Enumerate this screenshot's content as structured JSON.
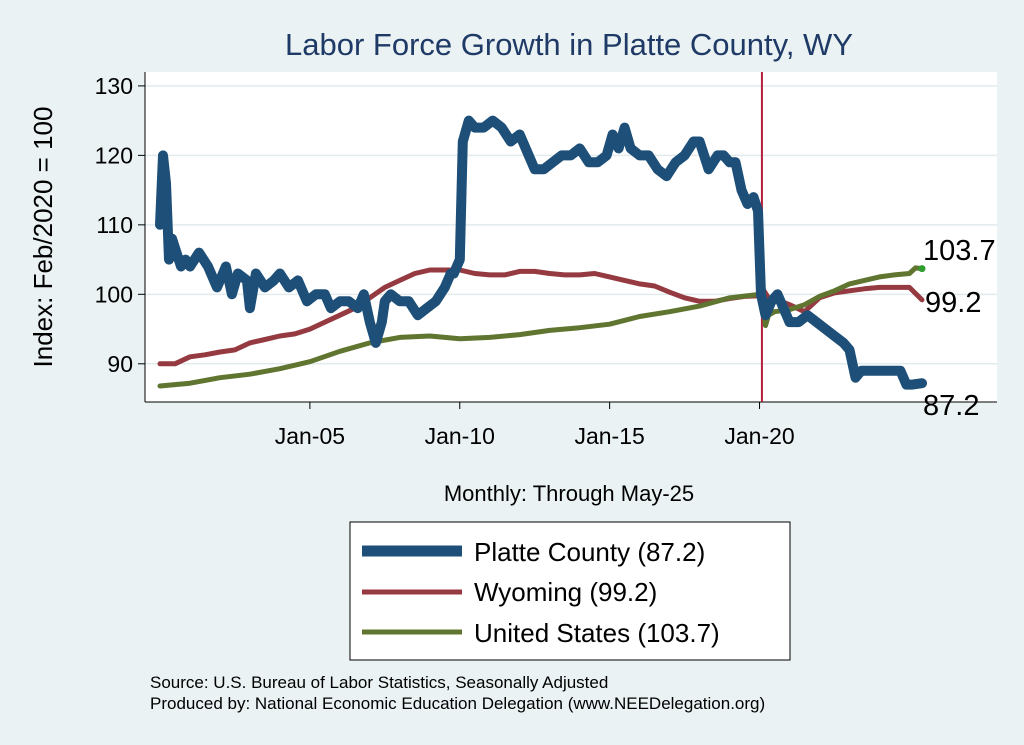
{
  "chart_data": {
    "type": "line",
    "title": "Labor Force Growth in Platte  County, WY",
    "xlabel": "Monthly: Through May-25",
    "ylabel": "Index: Feb/2020 = 100",
    "x_range": [
      2000.0,
      2025.42
    ],
    "ylim": [
      84.5,
      132
    ],
    "y_ticks": [
      90,
      100,
      110,
      120,
      130
    ],
    "y_tick_labels": [
      "90",
      "100",
      "110",
      "120",
      "130"
    ],
    "x_ticks": [
      2005,
      2010,
      2015,
      2020
    ],
    "x_tick_labels": [
      "Jan-05",
      "Jan-10",
      "Jan-15",
      "Jan-20"
    ],
    "vertical_line": {
      "x": 2020.08,
      "color": "#b0203a"
    },
    "series": [
      {
        "name": "Platte  County",
        "legend_label": "Platte  County (87.2)",
        "end_label": "87.2",
        "color": "#1d4f78",
        "x": [
          2000.0,
          2000.1,
          2000.2,
          2000.3,
          2000.4,
          2000.55,
          2000.7,
          2000.85,
          2001.0,
          2001.3,
          2001.6,
          2001.9,
          2002.2,
          2002.4,
          2002.6,
          2002.9,
          2003.0,
          2003.2,
          2003.5,
          2003.8,
          2004.0,
          2004.3,
          2004.6,
          2004.9,
          2005.2,
          2005.5,
          2005.7,
          2006.0,
          2006.3,
          2006.6,
          2006.8,
          2007.0,
          2007.2,
          2007.4,
          2007.5,
          2007.7,
          2008.0,
          2008.3,
          2008.6,
          2008.9,
          2009.2,
          2009.5,
          2009.7,
          2009.8,
          2009.9,
          2010.0,
          2010.1,
          2010.3,
          2010.5,
          2010.8,
          2011.1,
          2011.4,
          2011.7,
          2012.0,
          2012.3,
          2012.5,
          2012.8,
          2013.1,
          2013.4,
          2013.7,
          2014.0,
          2014.3,
          2014.6,
          2014.9,
          2015.1,
          2015.3,
          2015.5,
          2015.7,
          2016.0,
          2016.3,
          2016.6,
          2016.9,
          2017.2,
          2017.5,
          2017.8,
          2018.0,
          2018.3,
          2018.6,
          2018.8,
          2019.0,
          2019.2,
          2019.4,
          2019.6,
          2019.8,
          2019.95,
          2020.05,
          2020.2,
          2020.4,
          2020.6,
          2020.8,
          2021.0,
          2021.3,
          2021.6,
          2021.9,
          2022.2,
          2022.5,
          2022.8,
          2023.0,
          2023.2,
          2023.4,
          2023.6,
          2023.8,
          2024.1,
          2024.4,
          2024.7,
          2024.9,
          2025.1,
          2025.42
        ],
        "values": [
          110,
          120,
          116,
          105,
          108,
          106,
          104,
          105,
          104,
          106,
          104,
          101,
          104,
          100,
          103,
          102,
          98,
          103,
          101,
          102,
          103,
          101,
          102,
          99,
          100,
          100,
          98,
          99,
          99,
          98,
          100,
          96,
          93,
          96,
          99,
          100,
          99,
          99,
          97,
          98,
          99,
          101,
          103,
          103,
          104,
          105,
          122,
          125,
          124,
          124,
          125,
          124,
          122,
          123,
          120,
          118,
          118,
          119,
          120,
          120,
          121,
          119,
          119,
          120,
          123,
          121,
          124,
          121,
          120,
          120,
          118,
          117,
          119,
          120,
          122,
          122,
          118,
          120,
          120,
          119,
          119,
          115,
          113,
          114,
          112,
          100,
          97,
          99,
          100,
          98,
          96,
          96,
          97,
          96,
          95,
          94,
          93,
          92,
          88,
          89,
          89,
          89,
          89,
          89,
          89,
          87,
          87,
          87.2
        ]
      },
      {
        "name": "Wyoming",
        "legend_label": "Wyoming (99.2)",
        "end_label": "99.2",
        "color": "#953a40",
        "x": [
          2000.0,
          2000.5,
          2001.0,
          2001.5,
          2002.0,
          2002.5,
          2003.0,
          2003.5,
          2004.0,
          2004.5,
          2005.0,
          2005.5,
          2006.0,
          2006.5,
          2007.0,
          2007.5,
          2008.0,
          2008.5,
          2009.0,
          2009.5,
          2010.0,
          2010.5,
          2011.0,
          2011.5,
          2012.0,
          2012.5,
          2013.0,
          2013.5,
          2014.0,
          2014.5,
          2015.0,
          2015.5,
          2016.0,
          2016.5,
          2017.0,
          2017.5,
          2018.0,
          2018.5,
          2019.0,
          2019.5,
          2020.0,
          2020.15,
          2020.3,
          2020.6,
          2021.0,
          2021.5,
          2022.0,
          2022.5,
          2023.0,
          2023.5,
          2024.0,
          2024.5,
          2025.0,
          2025.42
        ],
        "values": [
          90,
          90,
          91,
          91.3,
          91.7,
          92,
          93,
          93.5,
          94,
          94.3,
          95,
          96,
          97,
          98,
          99.5,
          101,
          102,
          103,
          103.5,
          103.5,
          103.5,
          103,
          102.8,
          102.8,
          103.3,
          103.3,
          103,
          102.8,
          102.8,
          103,
          102.5,
          102,
          101.5,
          101.2,
          100.3,
          99.5,
          99,
          99,
          99.4,
          99.7,
          99.8,
          100.5,
          99.5,
          99.2,
          98.5,
          97.5,
          99.5,
          100.2,
          100.5,
          100.8,
          101,
          101,
          101,
          99.2
        ]
      },
      {
        "name": "United States",
        "legend_label": "United States (103.7)",
        "end_label": "103.7",
        "color": "#5f7530",
        "x": [
          2000.0,
          2001.0,
          2002.0,
          2003.0,
          2004.0,
          2005.0,
          2006.0,
          2007.0,
          2008.0,
          2009.0,
          2010.0,
          2011.0,
          2012.0,
          2013.0,
          2014.0,
          2015.0,
          2016.0,
          2017.0,
          2018.0,
          2019.0,
          2020.0,
          2020.1,
          2020.2,
          2020.3,
          2020.5,
          2021.0,
          2021.5,
          2022.0,
          2022.5,
          2023.0,
          2023.5,
          2024.0,
          2024.5,
          2025.0,
          2025.2,
          2025.42
        ],
        "values": [
          86.8,
          87.2,
          88,
          88.5,
          89.3,
          90.3,
          91.8,
          93,
          93.8,
          94,
          93.6,
          93.8,
          94.2,
          94.8,
          95.2,
          95.7,
          96.8,
          97.5,
          98.3,
          99.5,
          100,
          99.5,
          95.5,
          97,
          97.5,
          97.8,
          98.5,
          99.7,
          100.5,
          101.5,
          102,
          102.5,
          102.8,
          103,
          103.8,
          103.7
        ]
      }
    ],
    "legend_position": "bottom"
  },
  "source_lines": [
    "Source: U.S. Bureau of Labor Statistics, Seasonally Adjusted",
    "Produced by: National Economic Education Delegation (www.NEEDelegation.org)"
  ]
}
